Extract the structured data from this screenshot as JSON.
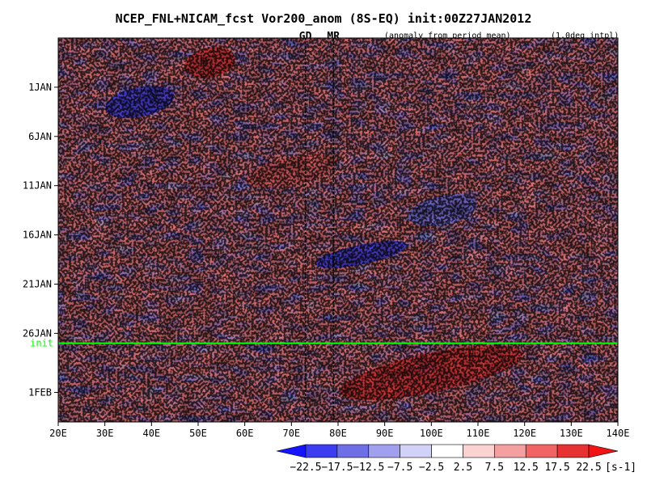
{
  "chart_data": {
    "type": "heatmap",
    "title": "NCEP_FNL+NICAM_fcst Vor200_anom (8S-EQ) init:00Z27JAN2012",
    "subtitle_left": "(anomaly from period mean)",
    "subtitle_right": "(1.0deg intpl)",
    "markers": [
      {
        "label": "GD",
        "x": 73,
        "color": "#e00000"
      },
      {
        "label": "MR",
        "x": 79,
        "color": "#e00000"
      }
    ],
    "xaxis": {
      "range": [
        20,
        140
      ],
      "ticks": [
        20,
        30,
        40,
        50,
        60,
        70,
        80,
        90,
        100,
        110,
        120,
        130,
        140
      ],
      "tick_labels": [
        "20E",
        "30E",
        "40E",
        "50E",
        "60E",
        "70E",
        "80E",
        "90E",
        "100E",
        "110E",
        "120E",
        "130E",
        "140E"
      ]
    },
    "yaxis": {
      "range_days": [
        "2011-12-27",
        "2012-02-04"
      ],
      "ticks": [
        {
          "date": "2012-01-01",
          "label": "1JAN"
        },
        {
          "date": "2012-01-06",
          "label": "6JAN"
        },
        {
          "date": "2012-01-11",
          "label": "11JAN"
        },
        {
          "date": "2012-01-16",
          "label": "16JAN"
        },
        {
          "date": "2012-01-21",
          "label": "21JAN"
        },
        {
          "date": "2012-01-26",
          "label": "26JAN"
        },
        {
          "date": "2012-02-01",
          "label": "1FEB"
        }
      ],
      "init_date": "2012-01-27",
      "init_label": "init",
      "init_color": "#00ff00"
    },
    "colorbar": {
      "levels": [
        -22.5,
        -17.5,
        -12.5,
        -7.5,
        -2.5,
        2.5,
        7.5,
        12.5,
        17.5,
        22.5
      ],
      "labels": [
        "−22.5",
        "−17.5",
        "−12.5",
        "−7.5",
        "−2.5",
        "2.5",
        "7.5",
        "12.5",
        "17.5",
        "22.5"
      ],
      "colors": [
        "#1414ff",
        "#3c3cf0",
        "#6e6ee6",
        "#a0a0ee",
        "#d2d2f8",
        "#ffffff",
        "#fad2d2",
        "#f5a0a0",
        "#f06464",
        "#e63232",
        "#f01414"
      ],
      "unit": "[s-1]"
    },
    "features": [
      {
        "kind": "positive_band",
        "x": [
          47,
          58
        ],
        "date": [
          "2011-12-28",
          "2011-12-31"
        ],
        "value": 20
      },
      {
        "kind": "negative_band",
        "x": [
          30,
          45
        ],
        "date": [
          "2012-01-01",
          "2012-01-04"
        ],
        "value": -18
      },
      {
        "kind": "positive_band",
        "x": [
          60,
          80
        ],
        "date": [
          "2012-01-08",
          "2012-01-11"
        ],
        "value": 17
      },
      {
        "kind": "negative_band",
        "x": [
          95,
          110
        ],
        "date": [
          "2012-01-12",
          "2012-01-15"
        ],
        "value": -14
      },
      {
        "kind": "negative_band",
        "x": [
          75,
          95
        ],
        "date": [
          "2012-01-17",
          "2012-01-19"
        ],
        "value": -20
      },
      {
        "kind": "positive_band",
        "x": [
          80,
          120
        ],
        "date": [
          "2012-01-28",
          "2012-02-01"
        ],
        "value": 22
      }
    ]
  }
}
